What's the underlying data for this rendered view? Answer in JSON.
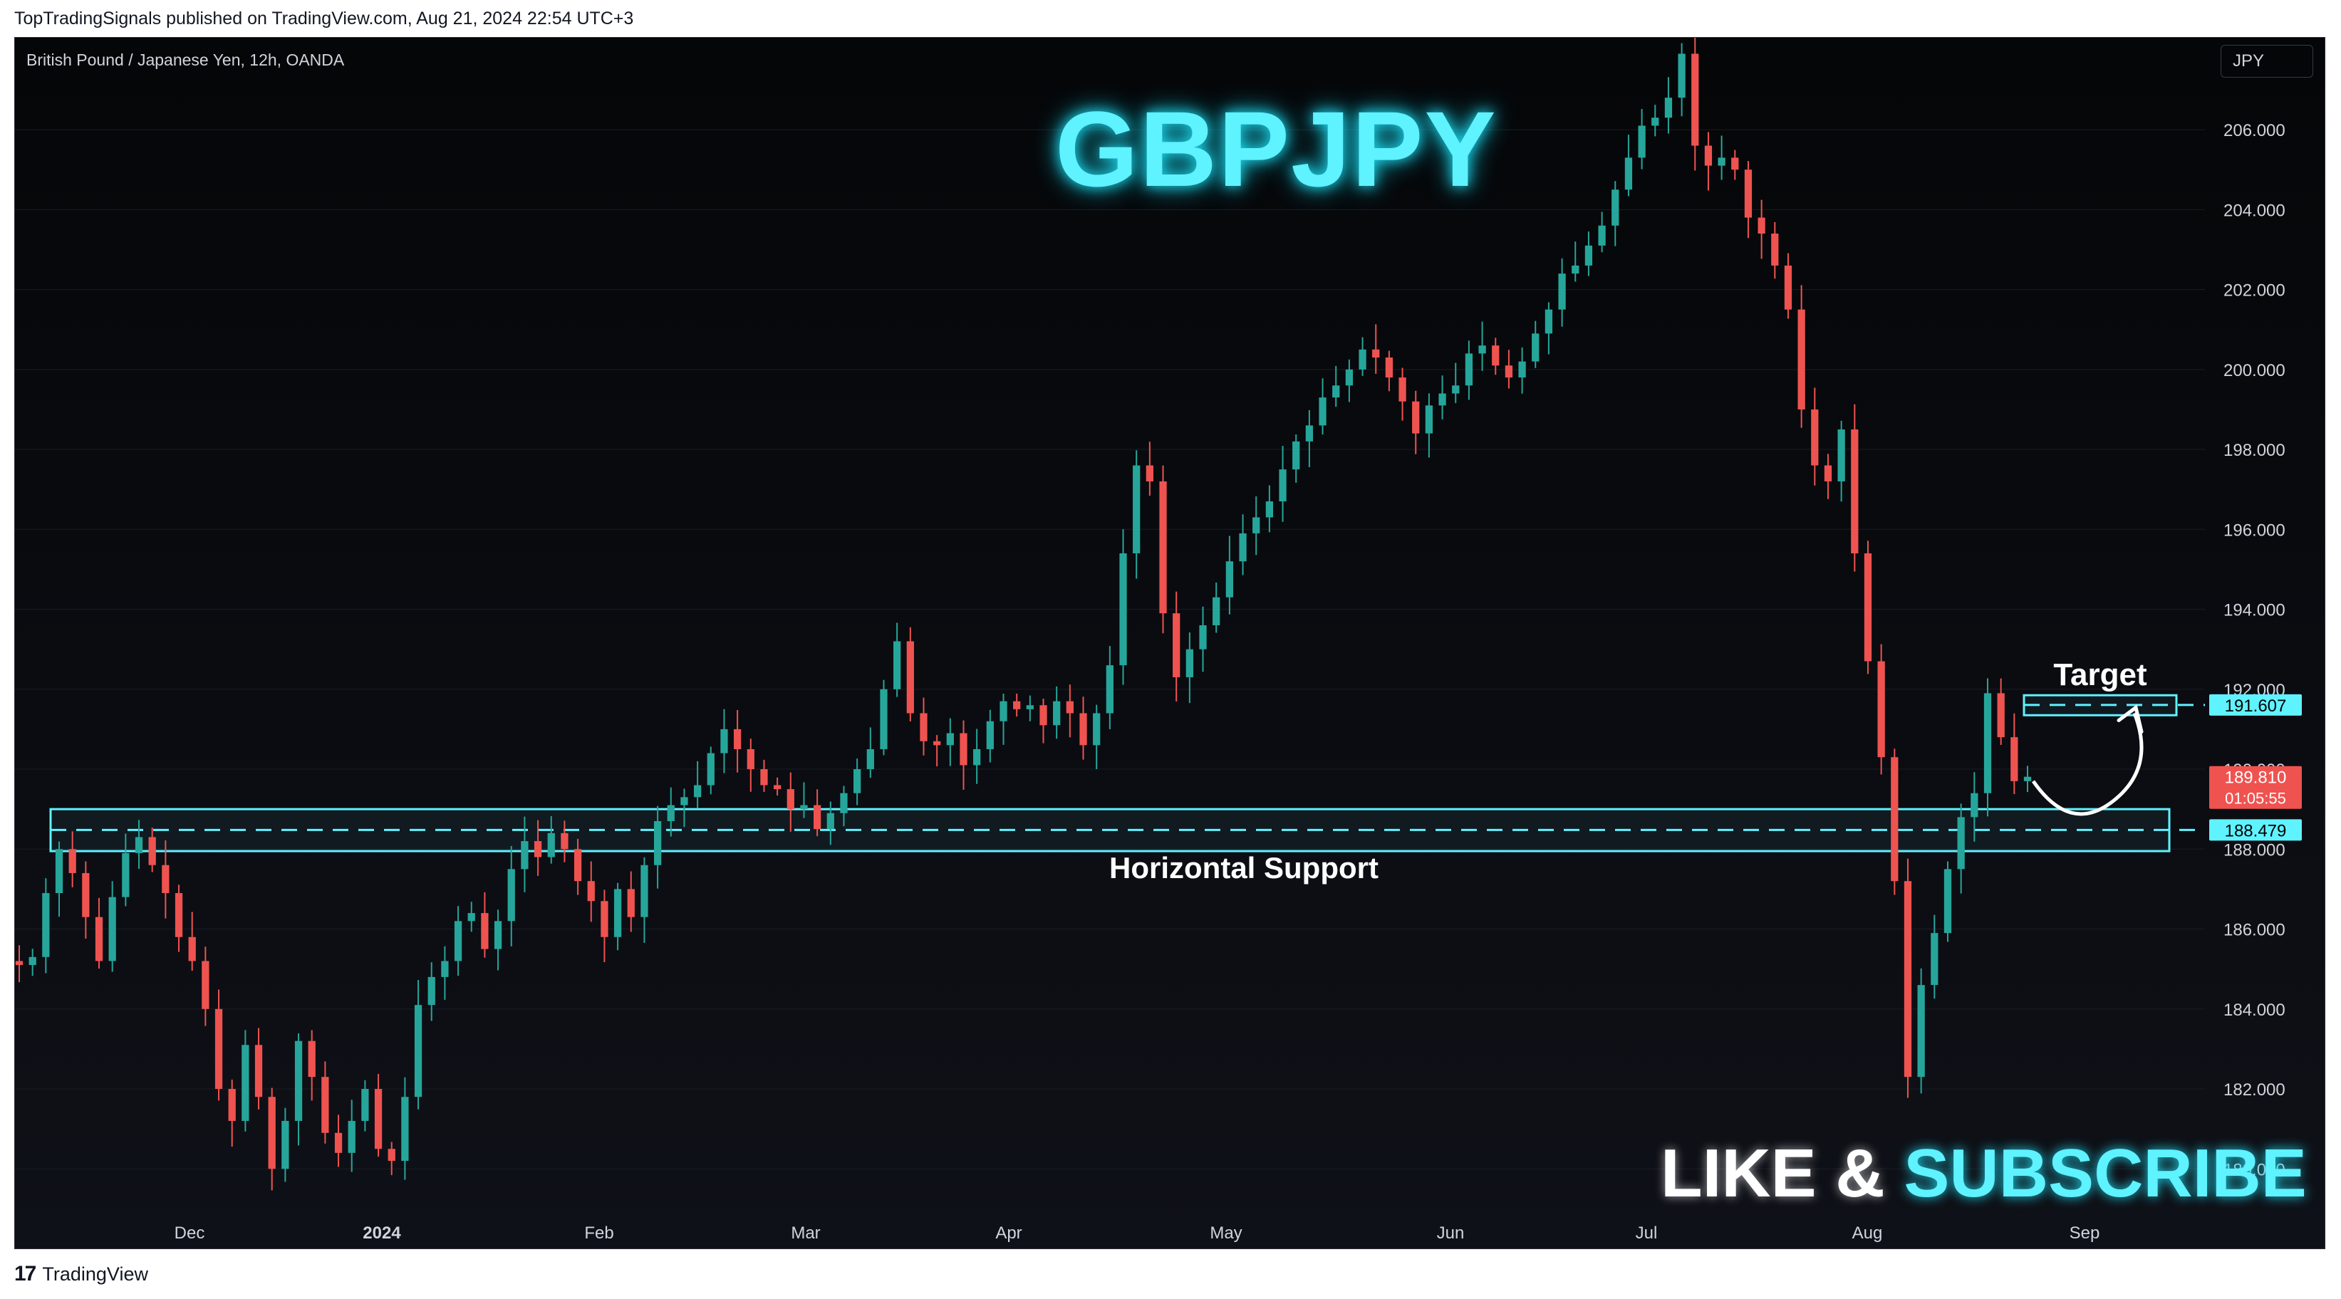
{
  "publication": {
    "text": "TopTradingSignals published on TradingView.com, Aug 21, 2024 22:54 UTC+3"
  },
  "chart_header": {
    "symbol": "British Pound / Japanese Yen, 12h, OANDA",
    "currency": "JPY"
  },
  "overlay": {
    "title": "GBPJPY",
    "like": "LIKE &",
    "subscribe": "SUBSCRIBE"
  },
  "footer": {
    "logo": "17",
    "brand": "TradingView"
  },
  "colors": {
    "up": "#26a69a",
    "down": "#ef5350",
    "cyan": "#5ff2ff",
    "axis_text": "#d1d4dc"
  },
  "chart_data": {
    "type": "candlestick",
    "timeframe": "12h",
    "ylim": [
      178.9,
      208.3
    ],
    "x_ticks": [
      "Dec",
      "2024",
      "Feb",
      "Mar",
      "Apr",
      "May",
      "Jun",
      "Jul",
      "Aug",
      "Sep"
    ],
    "y_ticks": [
      "206.000",
      "204.000",
      "202.000",
      "200.000",
      "198.000",
      "196.000",
      "194.000",
      "192.000",
      "190.000",
      "188.000",
      "186.000",
      "184.000",
      "182.000",
      "180.000"
    ],
    "price_labels": {
      "target": "191.607",
      "current": "189.810",
      "countdown": "01:05:55",
      "support": "188.479"
    },
    "support_zone": {
      "low": 187.95,
      "high": 189.0,
      "level": 188.479,
      "label": "Horizontal Support"
    },
    "target_zone": {
      "low": 191.35,
      "high": 191.85,
      "level": 191.607,
      "label": "Target"
    },
    "closes": [
      185.1,
      185.3,
      186.9,
      188.0,
      187.4,
      186.3,
      185.2,
      186.8,
      187.9,
      188.3,
      187.6,
      186.9,
      185.8,
      185.2,
      184.0,
      182.0,
      181.2,
      183.1,
      181.8,
      180.0,
      181.2,
      183.2,
      182.3,
      180.9,
      180.4,
      181.2,
      182.0,
      180.5,
      180.2,
      181.8,
      184.1,
      184.8,
      185.2,
      186.2,
      186.4,
      185.5,
      186.2,
      187.5,
      188.2,
      187.8,
      188.4,
      188.0,
      187.2,
      186.7,
      185.8,
      187.0,
      186.3,
      187.6,
      188.7,
      189.1,
      189.3,
      189.6,
      190.4,
      191.0,
      190.5,
      190.0,
      189.6,
      189.5,
      189.0,
      189.1,
      188.5,
      188.9,
      189.4,
      190.0,
      190.5,
      192.0,
      193.2,
      191.4,
      190.7,
      190.6,
      190.9,
      190.1,
      190.5,
      191.2,
      191.7,
      191.5,
      191.6,
      191.1,
      191.7,
      191.4,
      190.6,
      191.4,
      192.6,
      195.4,
      197.6,
      197.2,
      193.9,
      192.3,
      193.0,
      193.6,
      194.3,
      195.2,
      195.9,
      196.3,
      196.7,
      197.5,
      198.2,
      198.6,
      199.3,
      199.6,
      200.0,
      200.5,
      200.3,
      199.8,
      199.2,
      198.4,
      199.1,
      199.4,
      199.6,
      200.4,
      200.6,
      200.1,
      199.8,
      200.2,
      200.9,
      201.5,
      202.4,
      202.6,
      203.1,
      203.6,
      204.5,
      205.3,
      206.1,
      206.3,
      206.8,
      207.9,
      205.6,
      205.1,
      205.3,
      205.0,
      203.8,
      203.4,
      202.6,
      201.5,
      199.0,
      197.6,
      197.2,
      198.5,
      195.4,
      192.7,
      190.3,
      187.2,
      182.3,
      184.6,
      185.9,
      187.5,
      188.8,
      189.4,
      191.9,
      190.8,
      189.7,
      189.81
    ]
  }
}
